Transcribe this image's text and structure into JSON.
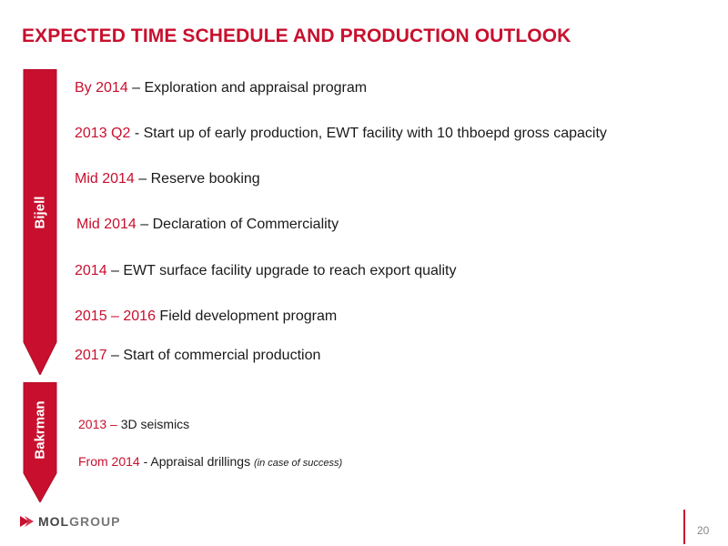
{
  "title": "EXPECTED TIME SCHEDULE AND PRODUCTION OUTLOOK",
  "colors": {
    "accent": "#c8102e",
    "text": "#1a1a1a",
    "muted": "#888888"
  },
  "bijell": {
    "label": "Bijell",
    "items": [
      {
        "date": "By 2014",
        "text": " – Exploration and appraisal program"
      },
      {
        "date": "2013 Q2",
        "text": " -  Start up of early production, EWT facility with 10 thboepd gross capacity"
      },
      {
        "date": "Mid 2014",
        "text": " – Reserve booking"
      },
      {
        "date": "Mid 2014",
        "text": " – Declaration of Commerciality"
      },
      {
        "date": "2014",
        "text": " – EWT surface facility upgrade to reach export quality"
      },
      {
        "date": "2015 – 2016",
        "text": " Field development program"
      },
      {
        "date": "2017",
        "text": " – Start of commercial production"
      }
    ]
  },
  "bakrman": {
    "label": "Bakrman",
    "items": [
      {
        "date": "2013 –",
        "text": " 3D seismics",
        "note": ""
      },
      {
        "date": "From 2014",
        "text": "  - Appraisal drillings ",
        "note": "(in case of success)"
      }
    ]
  },
  "logo": {
    "part1": "MOL",
    "part2": "GROUP",
    "icon": "arrow-chevron-icon"
  },
  "page_number": "20"
}
